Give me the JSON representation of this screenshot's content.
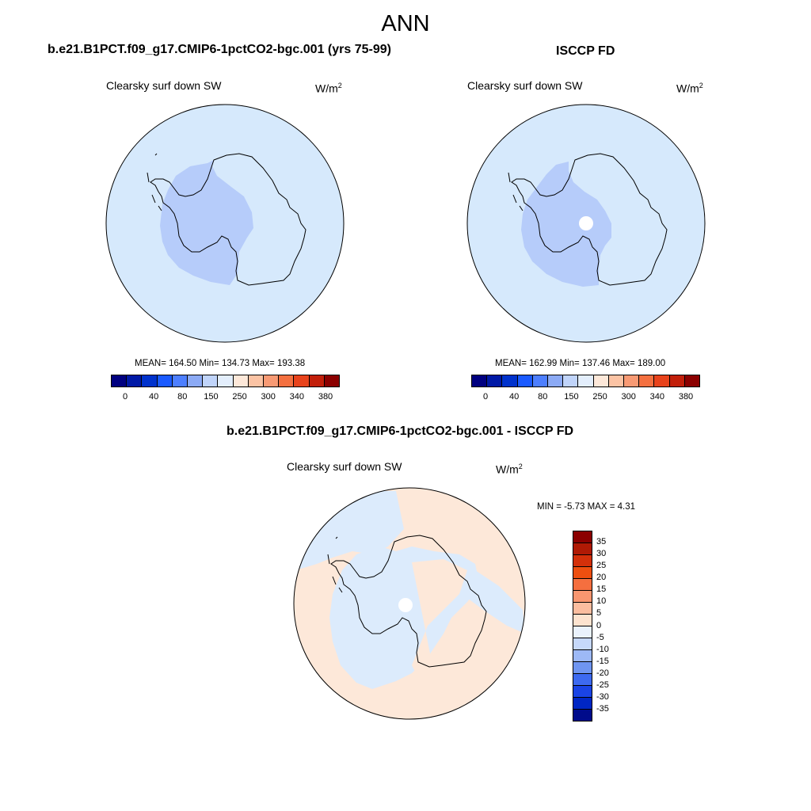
{
  "figure": {
    "title": "ANN",
    "panels": [
      {
        "case": "b.e21.B1PCT.f09_g17.CMIP6-1pctCO2-bgc.001 (yrs 75-99)",
        "variable": "Clearsky surf down SW",
        "units_base": "W/m",
        "units_exp": "2",
        "stats": "MEAN= 164.50  Min= 134.73  Max= 193.38"
      },
      {
        "case": "ISCCP FD",
        "variable": "Clearsky surf down SW",
        "units_base": "W/m",
        "units_exp": "2",
        "stats": "MEAN= 162.99  Min= 137.46  Max= 189.00"
      },
      {
        "case": "b.e21.B1PCT.f09_g17.CMIP6-1pctCO2-bgc.001 - ISCCP FD",
        "variable": "Clearsky surf down SW",
        "units_base": "W/m",
        "units_exp": "2",
        "stats": "MIN =  -5.73 MAX =   4.31"
      }
    ]
  },
  "colorbar_abs": {
    "colors": [
      "#000080",
      "#0019a6",
      "#0032cc",
      "#1a5aff",
      "#4d7fff",
      "#8caaf5",
      "#c0d4fa",
      "#e3eefc",
      "#fde8d9",
      "#fbc3a4",
      "#f89a74",
      "#f47040",
      "#e8431c",
      "#c21f0a",
      "#8b0000"
    ],
    "labels": [
      "0",
      "40",
      "80",
      "150",
      "250",
      "300",
      "340",
      "380"
    ]
  },
  "colorbar_diff": {
    "colors": [
      "#8b0000",
      "#b01a05",
      "#d4300a",
      "#ee4f10",
      "#f56f3f",
      "#f89670",
      "#fbbd9f",
      "#fde3cf",
      "#eaf2fc",
      "#c6d8fa",
      "#9db9f6",
      "#6f95f1",
      "#3d6af0",
      "#1a44e5",
      "#0026c4",
      "#000b8b"
    ],
    "labels": [
      "35",
      "30",
      "25",
      "20",
      "15",
      "10",
      "5",
      "0",
      "-5",
      "-10",
      "-15",
      "-20",
      "-25",
      "-30",
      "-35"
    ]
  }
}
